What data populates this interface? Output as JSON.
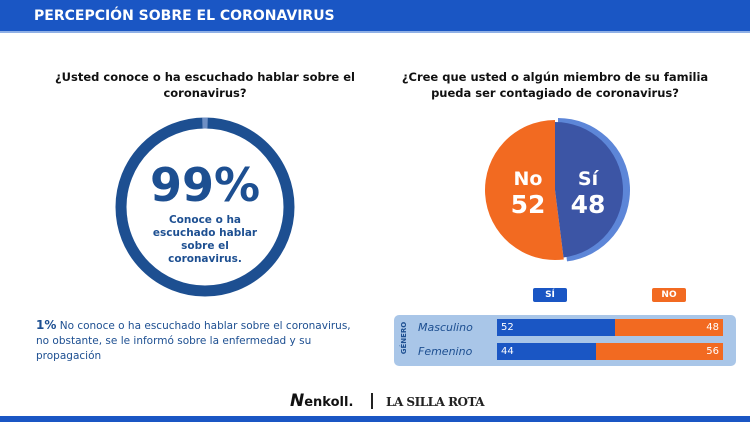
{
  "header": {
    "title": "PERCEPCIÓN SOBRE EL CORONAVIRUS"
  },
  "left": {
    "question": "¿Usted conoce o ha escuchado hablar sobre el coronavirus?",
    "big_value": "99%",
    "big_caption": "Conoce o ha escuchado hablar sobre el coronavirus.",
    "note_pct": "1%",
    "note_text": " No conoce o ha escuchado hablar sobre el coronavirus, no obstante, se le informó sobre la enfermedad y su propagación"
  },
  "right": {
    "question": "¿Cree que usted o algún miembro de su familia pueda ser contagiado de coronavirus?"
  },
  "chart_data": [
    {
      "type": "pie",
      "values": [
        99,
        1
      ],
      "labels": [
        "Conoce o ha escuchado hablar sobre el coronavirus.",
        "No conoce"
      ],
      "colors": [
        "#1d4f91",
        "#6e8fc4"
      ]
    },
    {
      "type": "pie",
      "categories": [
        "No",
        "Sí"
      ],
      "values": [
        52,
        48
      ],
      "colors": [
        "#f26a21",
        "#3c55a5"
      ]
    },
    {
      "type": "bar",
      "stacked": true,
      "orientation": "horizontal",
      "group_label": "GÉNERO",
      "categories": [
        "Masculino",
        "Femenino"
      ],
      "series": [
        {
          "name": "SÍ",
          "values": [
            52,
            44
          ],
          "color": "#1a56c4"
        },
        {
          "name": "NO",
          "values": [
            48,
            56
          ],
          "color": "#f26a21"
        }
      ]
    }
  ],
  "footer": {
    "logo1": "enkoll.",
    "logo2": "LA SILLA ROTA"
  }
}
